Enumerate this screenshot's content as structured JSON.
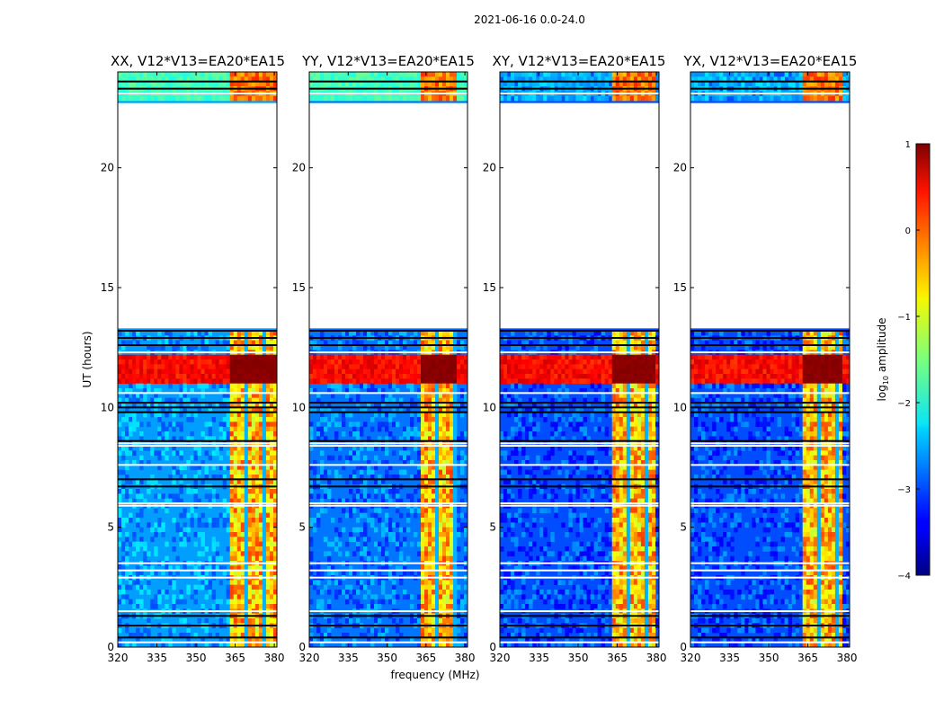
{
  "figure_title": "2021-06-16 0.0-24.0",
  "colors": {
    "bad": "#000000",
    "missing": "#ffffff"
  },
  "chart_data": {
    "type": "heatmap",
    "title": "2021-06-16 0.0-24.0",
    "xlabel": "frequency (MHz)",
    "ylabel": "UT (hours)",
    "xlim": [
      320,
      381
    ],
    "ylim": [
      0,
      24
    ],
    "xticks": [
      320,
      335,
      350,
      365,
      380
    ],
    "yticks": [
      0,
      5,
      10,
      15,
      20
    ],
    "no_data_ut_range": [
      13.3,
      22.7
    ],
    "band_mhz": [
      362.5,
      381
    ],
    "rfi_burst_ut": [
      11.0,
      12.2
    ],
    "colorbar": {
      "label": "log10 amplitude",
      "ticks": [
        -4,
        -3,
        -2,
        -1,
        0,
        1
      ],
      "range": [
        -4,
        1
      ],
      "colormap": "jet"
    },
    "panels": [
      {
        "title": "XX, V12*V13=EA20*EA15",
        "band_mhz": [
          362.5,
          381.0
        ],
        "bright_band_edge_mhz": 362.5,
        "background_log_amp": -2.6
      },
      {
        "title": "YY, V12*V13=EA20*EA15",
        "band_mhz": [
          362.5,
          377.5
        ],
        "bright_band_edge_mhz": 362.5,
        "background_log_amp": -2.8
      },
      {
        "title": "XY, V12*V13=EA20*EA15",
        "band_mhz": [
          362.5,
          380.0
        ],
        "bright_band_edge_mhz": 362.5,
        "background_log_amp": -3.0
      },
      {
        "title": "YX, V12*V13=EA20*EA15",
        "band_mhz": [
          362.5,
          378.0
        ],
        "bright_band_edge_mhz": 362.5,
        "background_log_amp": -3.0
      }
    ]
  }
}
